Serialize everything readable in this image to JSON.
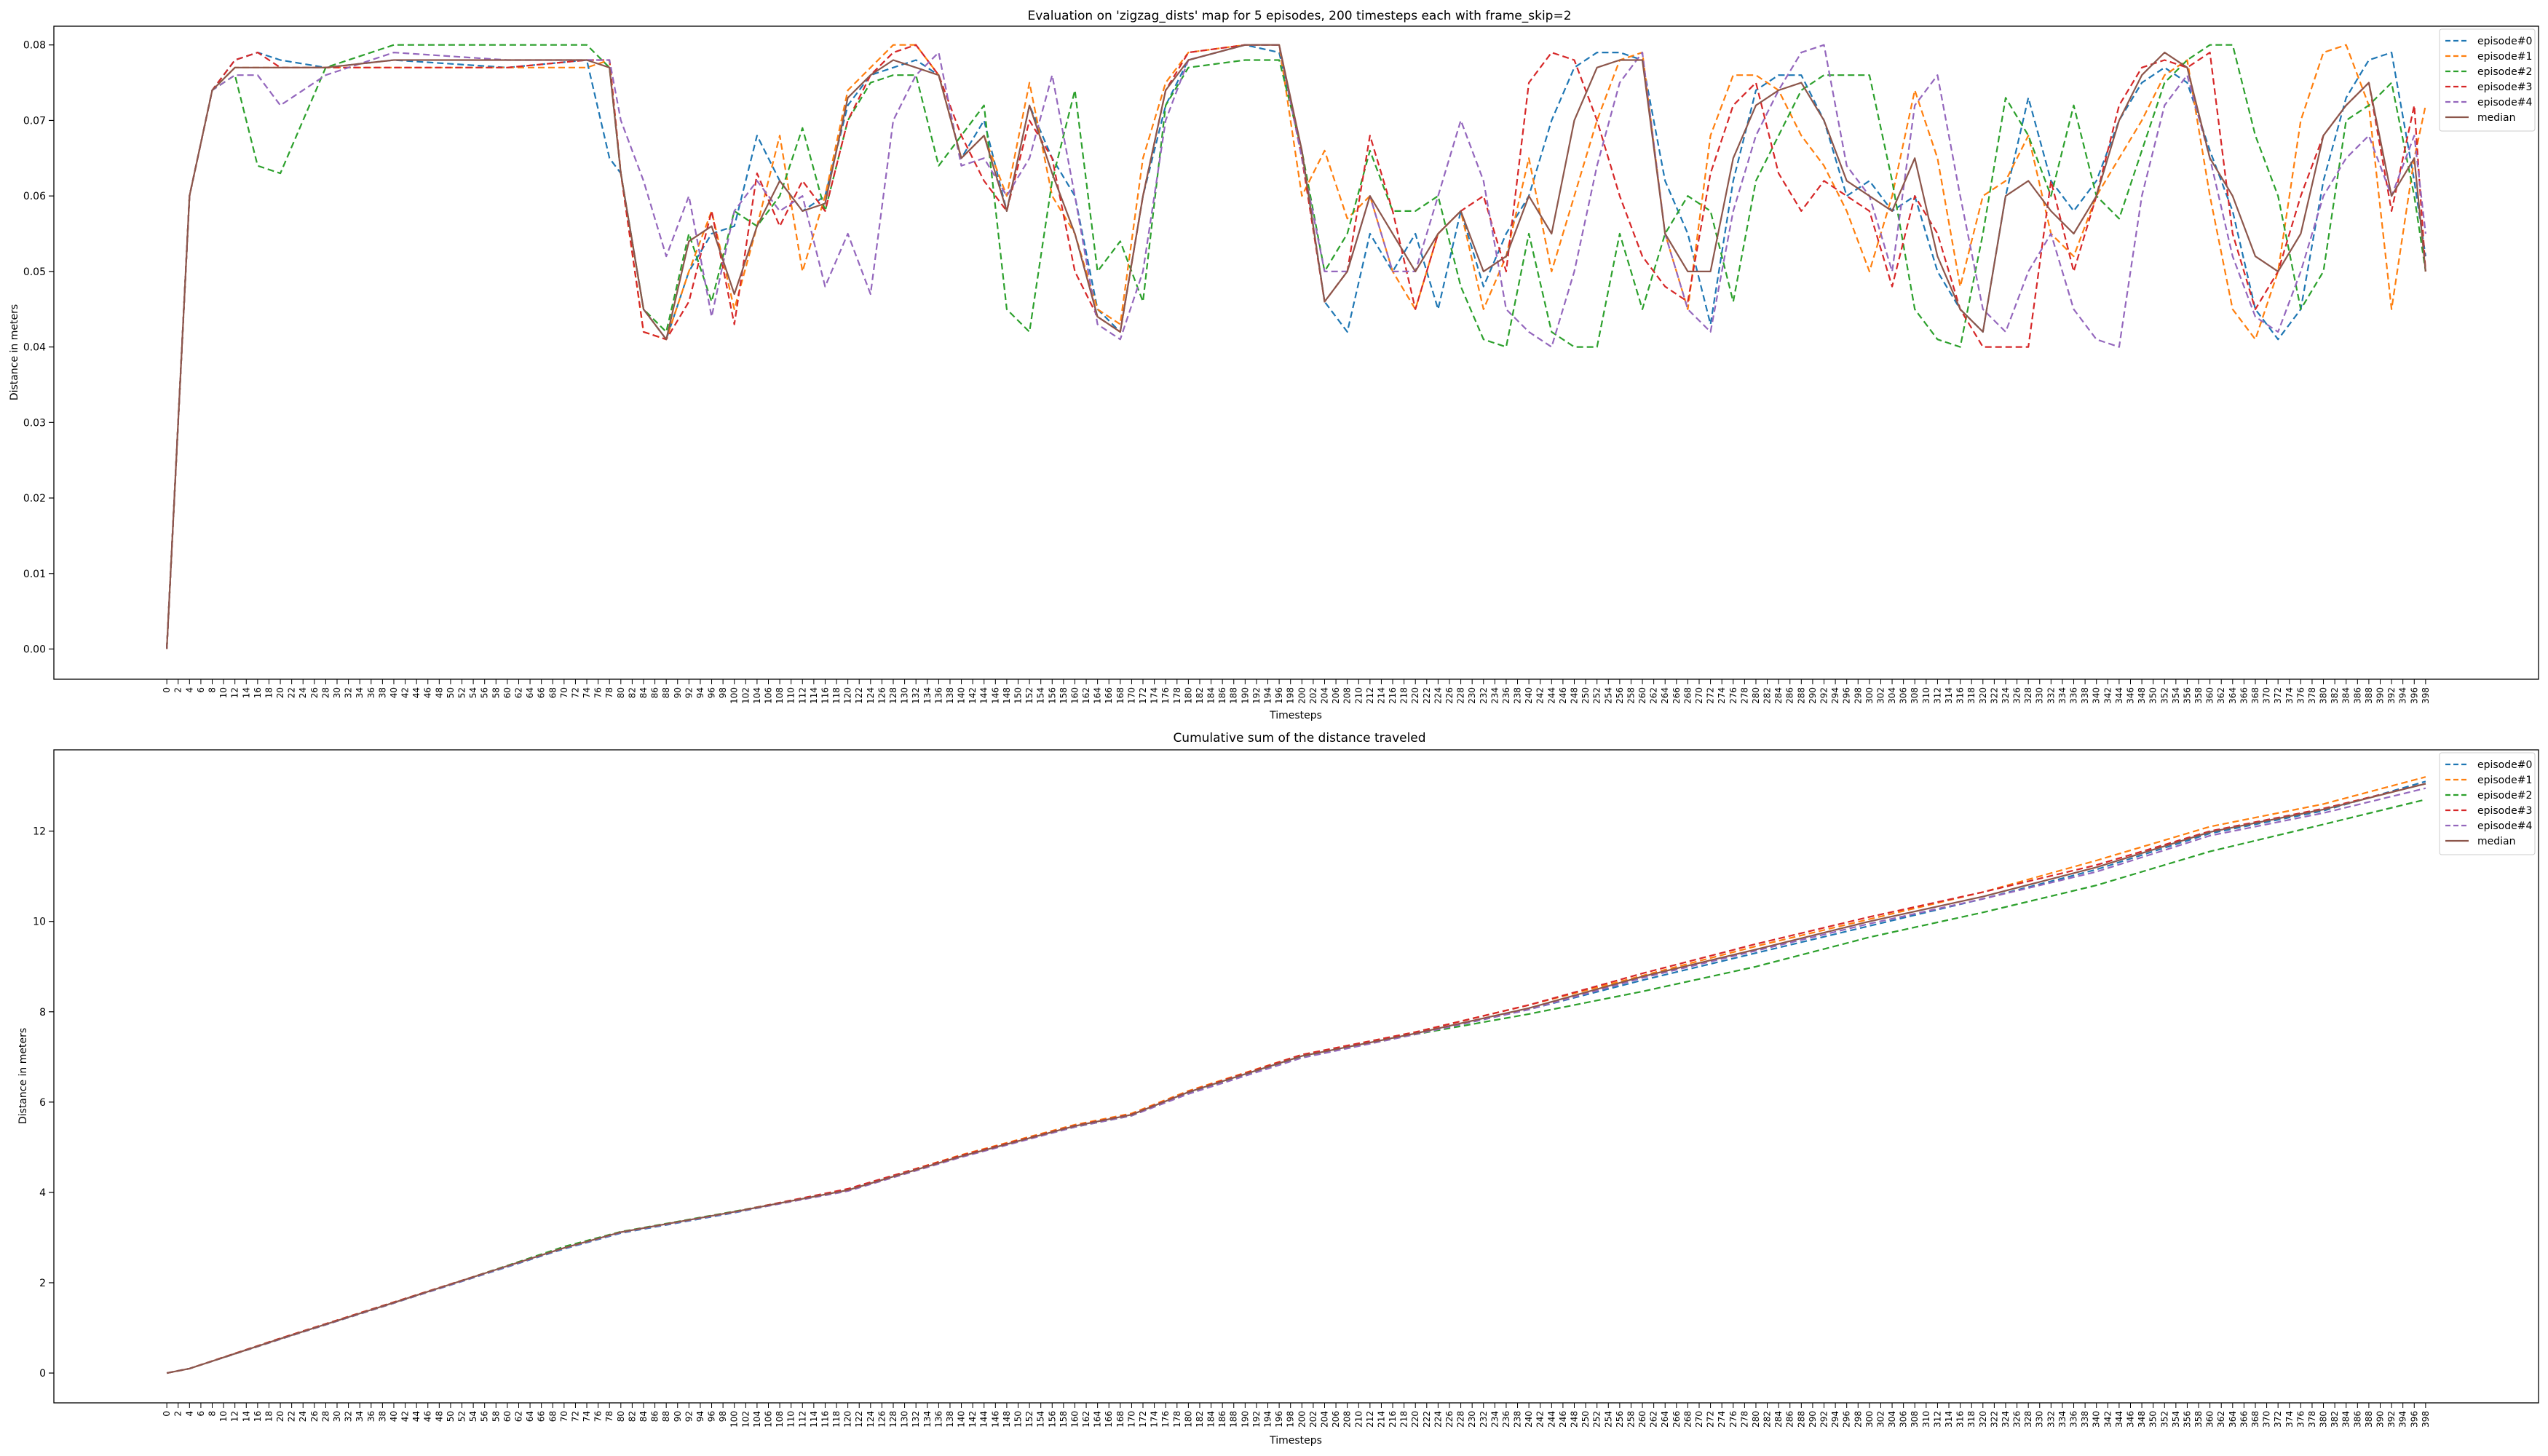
{
  "chart_data": [
    {
      "type": "line",
      "title": "Evaluation on 'zigzag_dists' map for 5 episodes, 200 timesteps each with frame_skip=2",
      "xlabel": "Timesteps",
      "ylabel": "Distance in meters",
      "xlim": [
        0,
        398
      ],
      "ylim": [
        0,
        0.08
      ],
      "xticks_step": 2,
      "yticks": [
        "0.00",
        "0.01",
        "0.02",
        "0.03",
        "0.04",
        "0.05",
        "0.06",
        "0.07",
        "0.08"
      ],
      "grid": false,
      "legend_position": "top-right",
      "x": [
        0,
        4,
        8,
        12,
        16,
        20,
        28,
        40,
        60,
        74,
        78,
        80,
        84,
        88,
        92,
        96,
        100,
        104,
        108,
        112,
        116,
        120,
        124,
        128,
        132,
        136,
        140,
        144,
        148,
        152,
        156,
        160,
        164,
        168,
        172,
        176,
        180,
        190,
        196,
        200,
        204,
        208,
        212,
        216,
        220,
        224,
        228,
        232,
        236,
        240,
        244,
        248,
        252,
        256,
        260,
        264,
        268,
        272,
        276,
        280,
        284,
        288,
        292,
        296,
        300,
        304,
        308,
        312,
        316,
        320,
        324,
        328,
        332,
        336,
        340,
        344,
        348,
        352,
        356,
        360,
        364,
        368,
        372,
        376,
        380,
        384,
        388,
        392,
        396,
        398
      ],
      "series": [
        {
          "name": "episode#0",
          "color": "#1f77b4",
          "dashed": true,
          "values": [
            0.0,
            0.06,
            0.074,
            0.078,
            0.079,
            0.078,
            0.077,
            0.078,
            0.077,
            0.078,
            0.065,
            0.063,
            0.045,
            0.041,
            0.05,
            0.055,
            0.056,
            0.068,
            0.062,
            0.058,
            0.06,
            0.072,
            0.076,
            0.077,
            0.078,
            0.076,
            0.065,
            0.07,
            0.058,
            0.072,
            0.065,
            0.06,
            0.045,
            0.042,
            0.06,
            0.072,
            0.078,
            0.08,
            0.079,
            0.066,
            0.046,
            0.042,
            0.055,
            0.05,
            0.055,
            0.045,
            0.058,
            0.048,
            0.055,
            0.06,
            0.07,
            0.077,
            0.079,
            0.079,
            0.078,
            0.062,
            0.055,
            0.043,
            0.062,
            0.074,
            0.076,
            0.076,
            0.07,
            0.06,
            0.062,
            0.058,
            0.06,
            0.05,
            0.045,
            0.042,
            0.06,
            0.073,
            0.062,
            0.058,
            0.062,
            0.07,
            0.075,
            0.077,
            0.075,
            0.066,
            0.058,
            0.045,
            0.041,
            0.045,
            0.062,
            0.073,
            0.078,
            0.079,
            0.062,
            0.052
          ]
        },
        {
          "name": "episode#1",
          "color": "#ff7f0e",
          "dashed": true,
          "values": [
            0.0,
            0.06,
            0.074,
            0.077,
            0.077,
            0.077,
            0.077,
            0.077,
            0.077,
            0.077,
            0.078,
            0.063,
            0.042,
            0.041,
            0.05,
            0.058,
            0.045,
            0.056,
            0.068,
            0.05,
            0.06,
            0.074,
            0.077,
            0.08,
            0.08,
            0.076,
            0.065,
            0.068,
            0.06,
            0.075,
            0.06,
            0.055,
            0.045,
            0.043,
            0.065,
            0.075,
            0.079,
            0.08,
            0.08,
            0.06,
            0.066,
            0.057,
            0.06,
            0.05,
            0.045,
            0.055,
            0.058,
            0.045,
            0.052,
            0.065,
            0.05,
            0.06,
            0.07,
            0.078,
            0.079,
            0.055,
            0.045,
            0.068,
            0.076,
            0.076,
            0.074,
            0.068,
            0.064,
            0.058,
            0.05,
            0.06,
            0.074,
            0.065,
            0.048,
            0.06,
            0.062,
            0.068,
            0.055,
            0.052,
            0.06,
            0.065,
            0.07,
            0.076,
            0.078,
            0.06,
            0.045,
            0.041,
            0.05,
            0.07,
            0.079,
            0.08,
            0.072,
            0.045,
            0.065,
            0.072
          ]
        },
        {
          "name": "episode#2",
          "color": "#2ca02c",
          "dashed": true,
          "values": [
            0.0,
            0.06,
            0.074,
            0.076,
            0.064,
            0.063,
            0.077,
            0.08,
            0.08,
            0.08,
            0.077,
            0.063,
            0.045,
            0.042,
            0.055,
            0.046,
            0.058,
            0.056,
            0.06,
            0.069,
            0.058,
            0.07,
            0.075,
            0.076,
            0.076,
            0.064,
            0.068,
            0.072,
            0.045,
            0.042,
            0.062,
            0.074,
            0.05,
            0.054,
            0.046,
            0.072,
            0.077,
            0.078,
            0.078,
            0.066,
            0.05,
            0.055,
            0.066,
            0.058,
            0.058,
            0.06,
            0.048,
            0.041,
            0.04,
            0.055,
            0.042,
            0.04,
            0.04,
            0.055,
            0.045,
            0.055,
            0.06,
            0.058,
            0.046,
            0.062,
            0.068,
            0.074,
            0.076,
            0.076,
            0.076,
            0.062,
            0.045,
            0.041,
            0.04,
            0.055,
            0.073,
            0.068,
            0.06,
            0.072,
            0.06,
            0.057,
            0.066,
            0.075,
            0.078,
            0.08,
            0.08,
            0.068,
            0.06,
            0.045,
            0.05,
            0.07,
            0.072,
            0.075,
            0.06,
            0.05
          ]
        },
        {
          "name": "episode#3",
          "color": "#d62728",
          "dashed": true,
          "values": [
            0.0,
            0.06,
            0.074,
            0.078,
            0.079,
            0.077,
            0.077,
            0.077,
            0.077,
            0.078,
            0.078,
            0.063,
            0.042,
            0.041,
            0.046,
            0.058,
            0.043,
            0.063,
            0.056,
            0.062,
            0.058,
            0.07,
            0.076,
            0.079,
            0.08,
            0.076,
            0.068,
            0.062,
            0.058,
            0.07,
            0.065,
            0.05,
            0.044,
            0.042,
            0.06,
            0.074,
            0.079,
            0.08,
            0.08,
            0.065,
            0.046,
            0.05,
            0.068,
            0.058,
            0.045,
            0.055,
            0.058,
            0.06,
            0.05,
            0.075,
            0.079,
            0.078,
            0.07,
            0.06,
            0.052,
            0.048,
            0.046,
            0.063,
            0.072,
            0.075,
            0.063,
            0.058,
            0.062,
            0.06,
            0.058,
            0.048,
            0.06,
            0.055,
            0.045,
            0.04,
            0.04,
            0.04,
            0.062,
            0.05,
            0.06,
            0.072,
            0.077,
            0.078,
            0.077,
            0.079,
            0.055,
            0.045,
            0.05,
            0.06,
            0.068,
            0.072,
            0.075,
            0.058,
            0.072,
            0.05
          ]
        },
        {
          "name": "episode#4",
          "color": "#9467bd",
          "dashed": true,
          "values": [
            0.0,
            0.06,
            0.074,
            0.076,
            0.076,
            0.072,
            0.076,
            0.079,
            0.078,
            0.078,
            0.078,
            0.07,
            0.062,
            0.052,
            0.06,
            0.044,
            0.058,
            0.062,
            0.058,
            0.06,
            0.048,
            0.055,
            0.047,
            0.07,
            0.076,
            0.079,
            0.064,
            0.065,
            0.06,
            0.065,
            0.076,
            0.06,
            0.043,
            0.041,
            0.05,
            0.07,
            0.078,
            0.08,
            0.08,
            0.065,
            0.05,
            0.05,
            0.06,
            0.05,
            0.05,
            0.06,
            0.07,
            0.062,
            0.045,
            0.042,
            0.04,
            0.05,
            0.064,
            0.075,
            0.079,
            0.055,
            0.045,
            0.042,
            0.058,
            0.068,
            0.074,
            0.079,
            0.08,
            0.064,
            0.06,
            0.05,
            0.072,
            0.076,
            0.06,
            0.045,
            0.042,
            0.05,
            0.055,
            0.045,
            0.041,
            0.04,
            0.06,
            0.072,
            0.076,
            0.065,
            0.052,
            0.044,
            0.042,
            0.05,
            0.06,
            0.065,
            0.068,
            0.06,
            0.068,
            0.055
          ]
        },
        {
          "name": "median",
          "color": "#8c564b",
          "dashed": false,
          "values": [
            0.0,
            0.06,
            0.074,
            0.077,
            0.077,
            0.077,
            0.077,
            0.078,
            0.078,
            0.078,
            0.077,
            0.063,
            0.045,
            0.041,
            0.054,
            0.056,
            0.047,
            0.056,
            0.062,
            0.058,
            0.059,
            0.073,
            0.076,
            0.078,
            0.077,
            0.076,
            0.065,
            0.068,
            0.058,
            0.072,
            0.063,
            0.055,
            0.044,
            0.042,
            0.06,
            0.074,
            0.078,
            0.08,
            0.08,
            0.066,
            0.046,
            0.05,
            0.06,
            0.055,
            0.05,
            0.055,
            0.058,
            0.05,
            0.052,
            0.06,
            0.055,
            0.07,
            0.077,
            0.078,
            0.078,
            0.055,
            0.05,
            0.05,
            0.065,
            0.072,
            0.074,
            0.075,
            0.07,
            0.062,
            0.06,
            0.058,
            0.065,
            0.052,
            0.045,
            0.042,
            0.06,
            0.062,
            0.058,
            0.055,
            0.06,
            0.07,
            0.076,
            0.079,
            0.077,
            0.065,
            0.06,
            0.052,
            0.05,
            0.055,
            0.068,
            0.072,
            0.075,
            0.06,
            0.065,
            0.05
          ]
        }
      ]
    },
    {
      "type": "line",
      "title": "Cumulative sum of the distance traveled",
      "xlabel": "Timesteps",
      "ylabel": "Distance in meters",
      "xlim": [
        0,
        398
      ],
      "ylim": [
        -0.66,
        13.8
      ],
      "xticks_step": 2,
      "yticks": [
        "0",
        "2",
        "4",
        "6",
        "8",
        "10",
        "12"
      ],
      "grid": false,
      "legend_position": "top-right",
      "x": [
        0,
        4,
        20,
        40,
        60,
        70,
        80,
        100,
        120,
        140,
        160,
        170,
        180,
        200,
        220,
        240,
        260,
        280,
        300,
        320,
        340,
        360,
        380,
        398
      ],
      "series": [
        {
          "name": "episode#0",
          "color": "#1f77b4",
          "dashed": true,
          "values": [
            0.0,
            0.1,
            0.75,
            1.55,
            2.35,
            2.75,
            3.1,
            3.55,
            4.05,
            4.8,
            5.45,
            5.7,
            6.2,
            7.0,
            7.5,
            8.05,
            8.7,
            9.3,
            9.9,
            10.5,
            11.15,
            11.95,
            12.45,
            13.1
          ]
        },
        {
          "name": "episode#1",
          "color": "#ff7f0e",
          "dashed": true,
          "values": [
            0.0,
            0.1,
            0.77,
            1.57,
            2.37,
            2.77,
            3.12,
            3.57,
            4.07,
            4.83,
            5.5,
            5.75,
            6.25,
            7.05,
            7.55,
            8.15,
            8.8,
            9.45,
            10.05,
            10.65,
            11.35,
            12.1,
            12.6,
            13.2
          ]
        },
        {
          "name": "episode#2",
          "color": "#2ca02c",
          "dashed": true,
          "values": [
            0.0,
            0.1,
            0.75,
            1.55,
            2.38,
            2.8,
            3.13,
            3.58,
            4.05,
            4.8,
            5.45,
            5.7,
            6.2,
            7.0,
            7.5,
            7.95,
            8.45,
            9.0,
            9.65,
            10.2,
            10.8,
            11.55,
            12.15,
            12.7
          ]
        },
        {
          "name": "episode#3",
          "color": "#d62728",
          "dashed": true,
          "values": [
            0.0,
            0.1,
            0.77,
            1.57,
            2.37,
            2.77,
            3.12,
            3.57,
            4.08,
            4.82,
            5.48,
            5.73,
            6.23,
            7.05,
            7.55,
            8.15,
            8.85,
            9.5,
            10.1,
            10.65,
            11.25,
            12.0,
            12.5,
            13.05
          ]
        },
        {
          "name": "episode#4",
          "color": "#9467bd",
          "dashed": true,
          "values": [
            0.0,
            0.1,
            0.75,
            1.55,
            2.36,
            2.76,
            3.11,
            3.56,
            4.03,
            4.78,
            5.45,
            5.7,
            6.18,
            6.98,
            7.5,
            8.05,
            8.75,
            9.35,
            9.95,
            10.5,
            11.1,
            11.9,
            12.4,
            12.95
          ]
        },
        {
          "name": "median",
          "color": "#8c564b",
          "dashed": false,
          "values": [
            0.0,
            0.1,
            0.76,
            1.56,
            2.37,
            2.77,
            3.12,
            3.57,
            4.05,
            4.8,
            5.47,
            5.72,
            6.22,
            7.02,
            7.52,
            8.08,
            8.78,
            9.38,
            10.0,
            10.55,
            11.2,
            11.98,
            12.48,
            13.05
          ]
        }
      ]
    }
  ]
}
